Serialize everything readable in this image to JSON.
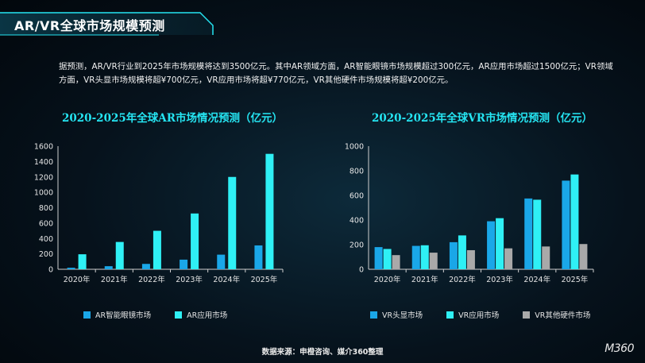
{
  "header": {
    "title": "AR/VR全球市场规模预测"
  },
  "intro": {
    "text": "据预测，AR/VR行业到2025年市场规模将达到3500亿元。其中AR领域方面，AR智能眼镜市场规模超过300亿元，AR应用市场超过1500亿元；VR领域方面，VR头显市场规模将超¥700亿元，VR应用市场将超¥770亿元，VR其他硬件市场规模将超¥200亿元。"
  },
  "source": "数据来源：申橙咨询、媒介360整理",
  "logo": "M360",
  "colors": {
    "accent": "#25e5f2",
    "series_blue": "#1aa7e8",
    "series_cyan": "#2ff0f5",
    "series_gray": "#a9a9a9"
  },
  "chart_data": [
    {
      "type": "bar",
      "title": "2020-2025年全球AR市场情况预测（亿元）",
      "categories": [
        "2020年",
        "2021年",
        "2022年",
        "2023年",
        "2024年",
        "2025年"
      ],
      "ylim": [
        0,
        1600
      ],
      "yticks": [
        "0",
        "200",
        "400",
        "600",
        "800",
        "1000",
        "1200",
        "1400",
        "1600"
      ],
      "grid": false,
      "legend_position": "bottom",
      "series": [
        {
          "name": "AR智能眼镜市场",
          "color": "#1aa7e8",
          "values": [
            20,
            40,
            70,
            125,
            190,
            310
          ]
        },
        {
          "name": "AR应用市场",
          "color": "#2ff0f5",
          "values": [
            195,
            355,
            500,
            725,
            1200,
            1500
          ]
        }
      ]
    },
    {
      "type": "bar",
      "title": "2020-2025年全球VR市场情况预测（亿元）",
      "categories": [
        "2020年",
        "2021年",
        "2022年",
        "2023年",
        "2024年",
        "2025年"
      ],
      "ylim": [
        0,
        1000
      ],
      "yticks": [
        "0",
        "200",
        "400",
        "600",
        "800",
        "1000"
      ],
      "grid": false,
      "legend_position": "bottom",
      "series": [
        {
          "name": "VR头显市场",
          "color": "#1aa7e8",
          "values": [
            180,
            190,
            220,
            390,
            575,
            720
          ]
        },
        {
          "name": "VR应用市场",
          "color": "#2ff0f5",
          "values": [
            165,
            195,
            275,
            415,
            565,
            770
          ]
        },
        {
          "name": "VR其他硬件市场",
          "color": "#a9a9a9",
          "values": [
            115,
            135,
            155,
            170,
            185,
            205
          ]
        }
      ]
    }
  ]
}
